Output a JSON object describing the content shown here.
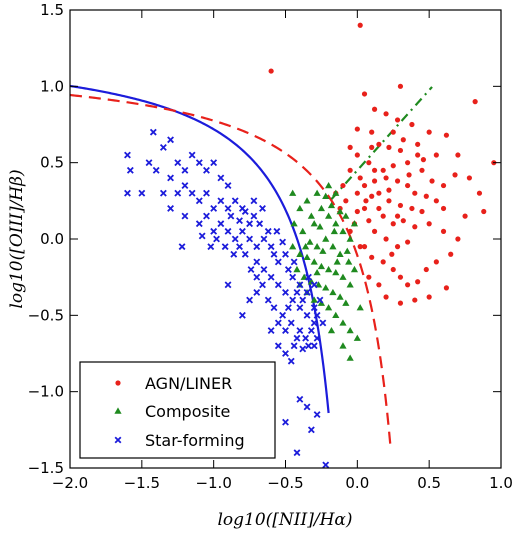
{
  "chart_data": {
    "type": "scatter",
    "title": "",
    "xlabel": "log10([NII]/Hα)",
    "ylabel": "log10([OIII]/Hβ)",
    "xlim": [
      -2.0,
      1.0
    ],
    "ylim": [
      -1.5,
      1.5
    ],
    "x_ticks": [
      -2.0,
      -1.5,
      -1.0,
      -0.5,
      0.0,
      0.5,
      1.0
    ],
    "x_tick_labels": [
      "−2.0",
      "−1.5",
      "−1.0",
      "−0.5",
      "0.0",
      "0.5",
      "1.0"
    ],
    "y_ticks": [
      -1.5,
      -1.0,
      -0.5,
      0.0,
      0.5,
      1.0,
      1.5
    ],
    "y_tick_labels": [
      "−1.5",
      "−1.0",
      "−0.5",
      "0.0",
      "0.5",
      "1.0",
      "1.5"
    ],
    "grid": false,
    "legend_position": "bottom-left",
    "colors": {
      "agn": "#e8211b",
      "composite": "#1f8a1f",
      "star": "#1c1cdb",
      "kewley": "#e8211b",
      "kauffmann": "#1c1cdb",
      "seyfert": "#1f8a1f"
    },
    "lines": [
      {
        "style": "solid",
        "color": "#1c1cdb",
        "equation": "0.61/(x-0.05)+1.3",
        "x_range": [
          -2.0,
          -0.2
        ]
      },
      {
        "style": "dashed",
        "color": "#e8211b",
        "equation": "0.61/(x-0.47)+1.19",
        "x_range": [
          -2.0,
          0.23
        ]
      },
      {
        "style": "dashdot",
        "color": "#1f8a1f",
        "equation": "1.05*x+0.45",
        "x_range": [
          -0.18,
          0.52
        ]
      }
    ],
    "series": [
      {
        "name": "AGN/LINER",
        "marker": "circle",
        "color": "#e8211b",
        "points": [
          [
            0.02,
            1.4
          ],
          [
            -0.6,
            1.1
          ],
          [
            0.82,
            0.9
          ],
          [
            0.62,
            0.68
          ],
          [
            0.95,
            0.5
          ],
          [
            0.7,
            0.55
          ],
          [
            0.5,
            0.7
          ],
          [
            0.55,
            0.55
          ],
          [
            0.3,
            1.0
          ],
          [
            0.05,
            0.95
          ],
          [
            0.12,
            0.85
          ],
          [
            0.2,
            0.82
          ],
          [
            0.28,
            0.78
          ],
          [
            0.38,
            0.75
          ],
          [
            0.42,
            0.62
          ],
          [
            0.1,
            0.7
          ],
          [
            0.0,
            0.72
          ],
          [
            -0.05,
            0.6
          ],
          [
            0.15,
            0.62
          ],
          [
            0.22,
            0.6
          ],
          [
            0.3,
            0.58
          ],
          [
            0.35,
            0.5
          ],
          [
            0.45,
            0.45
          ],
          [
            0.25,
            0.48
          ],
          [
            0.18,
            0.45
          ],
          [
            0.08,
            0.5
          ],
          [
            0.02,
            0.4
          ],
          [
            -0.05,
            0.45
          ],
          [
            -0.1,
            0.35
          ],
          [
            0.0,
            0.3
          ],
          [
            0.05,
            0.35
          ],
          [
            0.12,
            0.38
          ],
          [
            0.2,
            0.4
          ],
          [
            0.28,
            0.38
          ],
          [
            0.35,
            0.35
          ],
          [
            0.4,
            0.3
          ],
          [
            0.48,
            0.28
          ],
          [
            0.55,
            0.25
          ],
          [
            0.6,
            0.2
          ],
          [
            0.1,
            0.28
          ],
          [
            0.15,
            0.3
          ],
          [
            0.22,
            0.25
          ],
          [
            0.3,
            0.22
          ],
          [
            0.05,
            0.2
          ],
          [
            0.0,
            0.18
          ],
          [
            -0.08,
            0.25
          ],
          [
            -0.02,
            0.1
          ],
          [
            0.08,
            0.12
          ],
          [
            0.18,
            0.15
          ],
          [
            0.25,
            0.1
          ],
          [
            0.32,
            0.12
          ],
          [
            0.4,
            0.08
          ],
          [
            0.5,
            0.1
          ],
          [
            0.6,
            0.05
          ],
          [
            0.45,
            0.18
          ],
          [
            0.38,
            0.2
          ],
          [
            0.12,
            0.05
          ],
          [
            0.2,
            0.0
          ],
          [
            0.28,
            -0.05
          ],
          [
            0.35,
            -0.02
          ],
          [
            0.05,
            -0.05
          ],
          [
            0.1,
            -0.12
          ],
          [
            0.18,
            -0.15
          ],
          [
            0.25,
            -0.2
          ],
          [
            0.3,
            -0.25
          ],
          [
            0.35,
            -0.3
          ],
          [
            0.42,
            -0.28
          ],
          [
            0.48,
            -0.2
          ],
          [
            0.55,
            -0.15
          ],
          [
            0.65,
            -0.1
          ],
          [
            0.7,
            0.0
          ],
          [
            0.75,
            0.15
          ],
          [
            0.15,
            -0.3
          ],
          [
            0.2,
            -0.38
          ],
          [
            0.3,
            -0.42
          ],
          [
            0.4,
            -0.4
          ],
          [
            0.5,
            -0.38
          ],
          [
            0.62,
            -0.32
          ],
          [
            0.08,
            -0.25
          ],
          [
            0.02,
            -0.05
          ],
          [
            -0.05,
            0.05
          ],
          [
            -0.12,
            0.2
          ],
          [
            -0.15,
            0.3
          ],
          [
            0.0,
            0.55
          ],
          [
            0.1,
            0.6
          ],
          [
            0.25,
            0.7
          ],
          [
            0.32,
            0.65
          ],
          [
            0.42,
            0.55
          ],
          [
            0.85,
            0.3
          ],
          [
            0.78,
            0.4
          ],
          [
            0.68,
            0.42
          ],
          [
            0.88,
            0.18
          ],
          [
            0.6,
            0.35
          ],
          [
            0.52,
            0.38
          ],
          [
            0.15,
            0.2
          ],
          [
            0.22,
            0.32
          ],
          [
            0.28,
            0.15
          ],
          [
            0.12,
            0.45
          ],
          [
            0.06,
            0.25
          ],
          [
            0.36,
            0.42
          ],
          [
            0.46,
            0.52
          ],
          [
            0.24,
            -0.1
          ]
        ]
      },
      {
        "name": "Composite",
        "marker": "triangle",
        "color": "#1f8a1f",
        "points": [
          [
            -0.45,
            0.3
          ],
          [
            -0.4,
            0.2
          ],
          [
            -0.35,
            0.25
          ],
          [
            -0.3,
            0.1
          ],
          [
            -0.25,
            0.2
          ],
          [
            -0.2,
            0.15
          ],
          [
            -0.15,
            0.1
          ],
          [
            -0.1,
            0.05
          ],
          [
            -0.05,
            0.0
          ],
          [
            -0.38,
            0.05
          ],
          [
            -0.33,
            -0.02
          ],
          [
            -0.28,
            -0.05
          ],
          [
            -0.22,
            0.0
          ],
          [
            -0.17,
            -0.05
          ],
          [
            -0.12,
            -0.1
          ],
          [
            -0.07,
            -0.08
          ],
          [
            -0.4,
            -0.1
          ],
          [
            -0.35,
            -0.12
          ],
          [
            -0.3,
            -0.15
          ],
          [
            -0.25,
            -0.18
          ],
          [
            -0.2,
            -0.2
          ],
          [
            -0.15,
            -0.22
          ],
          [
            -0.1,
            -0.25
          ],
          [
            -0.05,
            -0.3
          ],
          [
            -0.42,
            -0.2
          ],
          [
            -0.37,
            -0.25
          ],
          [
            -0.32,
            -0.28
          ],
          [
            -0.27,
            -0.3
          ],
          [
            -0.22,
            -0.32
          ],
          [
            -0.17,
            -0.35
          ],
          [
            -0.12,
            -0.38
          ],
          [
            -0.08,
            -0.42
          ],
          [
            -0.35,
            -0.35
          ],
          [
            -0.3,
            -0.4
          ],
          [
            -0.25,
            -0.42
          ],
          [
            -0.2,
            -0.45
          ],
          [
            -0.15,
            -0.5
          ],
          [
            -0.1,
            -0.55
          ],
          [
            -0.05,
            -0.6
          ],
          [
            0.0,
            -0.65
          ],
          [
            -0.28,
            0.3
          ],
          [
            -0.22,
            0.28
          ],
          [
            -0.18,
            0.22
          ],
          [
            -0.12,
            0.18
          ],
          [
            -0.08,
            0.15
          ],
          [
            -0.02,
            0.1
          ],
          [
            -0.45,
            -0.05
          ],
          [
            -0.4,
            -0.3
          ],
          [
            -0.18,
            -0.6
          ],
          [
            -0.1,
            -0.7
          ],
          [
            -0.05,
            -0.78
          ],
          [
            0.02,
            -0.45
          ],
          [
            -0.02,
            -0.2
          ],
          [
            -0.26,
            0.08
          ],
          [
            -0.14,
            -0.15
          ],
          [
            -0.32,
            0.15
          ],
          [
            -0.2,
            0.35
          ],
          [
            -0.15,
            0.3
          ],
          [
            -0.36,
            -0.05
          ],
          [
            -0.24,
            -0.08
          ],
          [
            -0.06,
            -0.15
          ],
          [
            -0.16,
            0.05
          ],
          [
            -0.44,
            0.1
          ],
          [
            -0.28,
            -0.22
          ]
        ]
      },
      {
        "name": "Star-forming",
        "marker": "x",
        "color": "#1c1cdb",
        "points": [
          [
            -1.42,
            0.7
          ],
          [
            -1.35,
            0.6
          ],
          [
            -1.3,
            0.65
          ],
          [
            -1.6,
            0.55
          ],
          [
            -1.58,
            0.45
          ],
          [
            -1.45,
            0.5
          ],
          [
            -1.4,
            0.45
          ],
          [
            -1.5,
            0.3
          ],
          [
            -1.6,
            0.3
          ],
          [
            -1.35,
            0.3
          ],
          [
            -1.3,
            0.4
          ],
          [
            -1.25,
            0.5
          ],
          [
            -1.2,
            0.45
          ],
          [
            -1.15,
            0.55
          ],
          [
            -1.1,
            0.5
          ],
          [
            -1.05,
            0.45
          ],
          [
            -1.0,
            0.5
          ],
          [
            -0.95,
            0.4
          ],
          [
            -0.9,
            0.35
          ],
          [
            -1.25,
            0.3
          ],
          [
            -1.2,
            0.35
          ],
          [
            -1.15,
            0.3
          ],
          [
            -1.1,
            0.25
          ],
          [
            -1.05,
            0.3
          ],
          [
            -1.0,
            0.2
          ],
          [
            -0.95,
            0.25
          ],
          [
            -0.9,
            0.2
          ],
          [
            -0.85,
            0.25
          ],
          [
            -0.8,
            0.2
          ],
          [
            -0.75,
            0.1
          ],
          [
            -1.3,
            0.2
          ],
          [
            -1.2,
            0.15
          ],
          [
            -1.1,
            0.1
          ],
          [
            -1.0,
            0.05
          ],
          [
            -0.95,
            0.1
          ],
          [
            -0.9,
            0.05
          ],
          [
            -0.85,
            0.0
          ],
          [
            -0.8,
            0.05
          ],
          [
            -0.75,
            0.0
          ],
          [
            -0.7,
            -0.05
          ],
          [
            -0.65,
            0.0
          ],
          [
            -1.05,
            0.15
          ],
          [
            -0.88,
            0.15
          ],
          [
            -0.82,
            0.12
          ],
          [
            -0.78,
            0.18
          ],
          [
            -0.72,
            0.15
          ],
          [
            -0.68,
            0.1
          ],
          [
            -0.62,
            0.05
          ],
          [
            -0.6,
            -0.05
          ],
          [
            -0.58,
            -0.1
          ],
          [
            -0.55,
            -0.15
          ],
          [
            -0.5,
            -0.1
          ],
          [
            -0.48,
            -0.2
          ],
          [
            -0.45,
            -0.25
          ],
          [
            -0.7,
            -0.15
          ],
          [
            -0.65,
            -0.2
          ],
          [
            -0.6,
            -0.25
          ],
          [
            -0.55,
            -0.3
          ],
          [
            -0.5,
            -0.35
          ],
          [
            -0.45,
            -0.4
          ],
          [
            -0.4,
            -0.45
          ],
          [
            -0.35,
            -0.5
          ],
          [
            -0.3,
            -0.45
          ],
          [
            -0.35,
            -0.35
          ],
          [
            -0.4,
            -0.3
          ],
          [
            -0.42,
            -0.35
          ],
          [
            -0.38,
            -0.4
          ],
          [
            -0.48,
            -0.45
          ],
          [
            -0.52,
            -0.5
          ],
          [
            -0.46,
            -0.55
          ],
          [
            -0.4,
            -0.6
          ],
          [
            -0.36,
            -0.65
          ],
          [
            -0.32,
            -0.6
          ],
          [
            -0.3,
            -0.55
          ],
          [
            -0.42,
            -0.65
          ],
          [
            -0.44,
            -0.7
          ],
          [
            -0.38,
            -0.72
          ],
          [
            -0.34,
            -0.7
          ],
          [
            -0.3,
            -0.7
          ],
          [
            -0.28,
            -0.65
          ],
          [
            -0.5,
            -0.6
          ],
          [
            -0.55,
            -0.55
          ],
          [
            -0.58,
            -0.45
          ],
          [
            -0.62,
            -0.4
          ],
          [
            -0.66,
            -0.3
          ],
          [
            -0.7,
            -0.25
          ],
          [
            -0.74,
            -0.2
          ],
          [
            -0.78,
            -0.1
          ],
          [
            -0.82,
            -0.05
          ],
          [
            -0.86,
            -0.1
          ],
          [
            -0.92,
            -0.05
          ],
          [
            -0.98,
            0.0
          ],
          [
            -1.02,
            -0.05
          ],
          [
            -1.08,
            0.02
          ],
          [
            -0.72,
            0.25
          ],
          [
            -0.66,
            0.2
          ],
          [
            -0.9,
            -0.3
          ],
          [
            -0.8,
            -0.5
          ],
          [
            -0.7,
            -0.35
          ],
          [
            -0.75,
            -0.4
          ],
          [
            -0.6,
            -0.6
          ],
          [
            -0.55,
            -0.7
          ],
          [
            -0.5,
            -0.75
          ],
          [
            -0.46,
            -0.8
          ],
          [
            -0.5,
            -1.2
          ],
          [
            -0.4,
            -1.05
          ],
          [
            -0.32,
            -1.25
          ],
          [
            -0.28,
            -1.15
          ],
          [
            -0.35,
            -1.1
          ],
          [
            -0.42,
            -1.4
          ],
          [
            -0.22,
            -1.48
          ],
          [
            -1.22,
            -0.05
          ],
          [
            -0.56,
            0.05
          ],
          [
            -0.52,
            -0.02
          ],
          [
            -0.44,
            -0.15
          ],
          [
            -0.34,
            -0.25
          ],
          [
            -0.3,
            -0.3
          ],
          [
            -0.26,
            -0.4
          ],
          [
            -0.28,
            -0.5
          ],
          [
            -0.24,
            -0.55
          ]
        ]
      }
    ]
  },
  "legend": {
    "items": [
      {
        "label": "AGN/LINER",
        "marker": "circle",
        "color": "#e8211b"
      },
      {
        "label": "Composite",
        "marker": "triangle",
        "color": "#1f8a1f"
      },
      {
        "label": "Star-forming",
        "marker": "x",
        "color": "#1c1cdb"
      }
    ]
  }
}
